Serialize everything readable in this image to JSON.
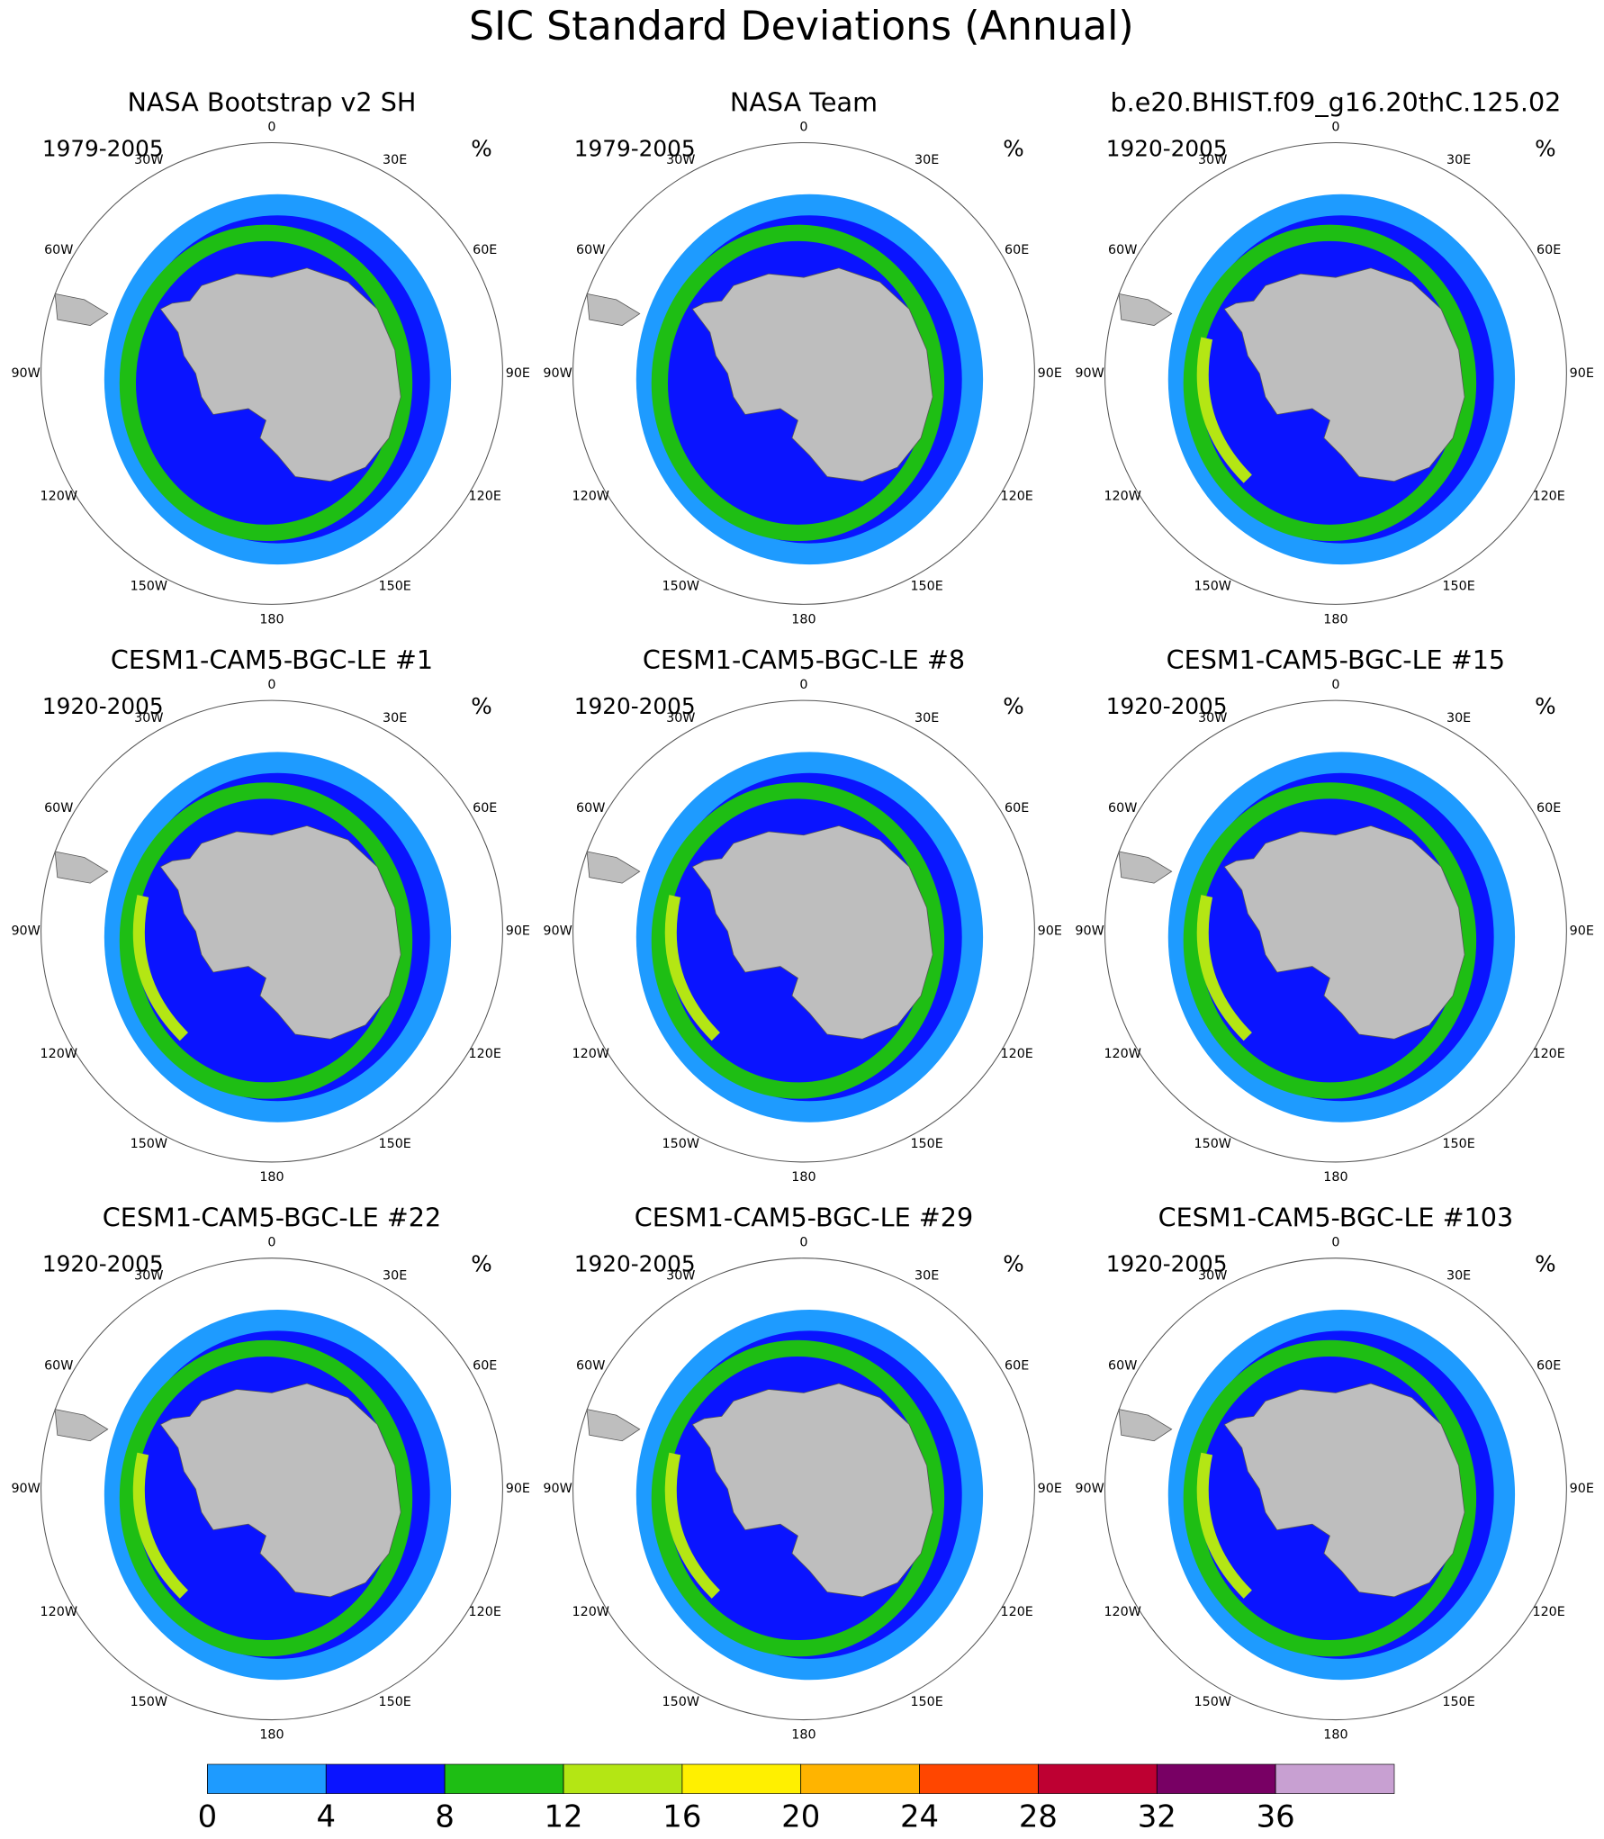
{
  "title": "SIC Standard Deviations (Annual)",
  "unit": "%",
  "lon_labels": [
    "0",
    "30E",
    "60E",
    "90E",
    "120E",
    "150E",
    "180",
    "150W",
    "120W",
    "90W",
    "60W",
    "30W"
  ],
  "panels": [
    {
      "title": "NASA Bootstrap v2 SH",
      "period": "1979-2005"
    },
    {
      "title": "NASA Team",
      "period": "1979-2005"
    },
    {
      "title": "b.e20.BHIST.f09_g16.20thC.125.02",
      "period": "1920-2005"
    },
    {
      "title": "CESM1-CAM5-BGC-LE #1",
      "period": "1920-2005"
    },
    {
      "title": "CESM1-CAM5-BGC-LE #8",
      "period": "1920-2005"
    },
    {
      "title": "CESM1-CAM5-BGC-LE #15",
      "period": "1920-2005"
    },
    {
      "title": "CESM1-CAM5-BGC-LE #22",
      "period": "1920-2005"
    },
    {
      "title": "CESM1-CAM5-BGC-LE #29",
      "period": "1920-2005"
    },
    {
      "title": "CESM1-CAM5-BGC-LE #103",
      "period": "1920-2005"
    }
  ],
  "colorbar": {
    "ticks": [
      0,
      4,
      8,
      12,
      16,
      20,
      24,
      28,
      32,
      36
    ],
    "colors": [
      "#1e9bff",
      "#0a14ff",
      "#1ebe14",
      "#b4e614",
      "#fff000",
      "#ffb400",
      "#ff4600",
      "#be0032",
      "#780064",
      "#c8a0d2"
    ]
  }
}
